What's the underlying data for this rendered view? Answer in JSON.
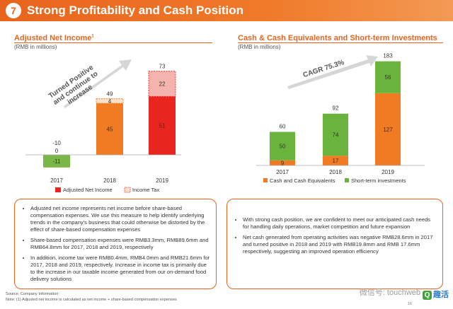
{
  "header": {
    "number": "7",
    "title": "Strong Profitability and Cash Position"
  },
  "left_chart": {
    "title": "Adjusted Net Income",
    "title_sup": "1",
    "subtitle": "(RMB in millions)",
    "arrow_text": [
      "Turned Positive",
      "and continue to",
      "increase"
    ],
    "legend": [
      "Adjusted Net Income",
      "Income Tax"
    ]
  },
  "right_chart": {
    "title": "Cash & Cash Equivalents and Short-term Investments",
    "subtitle": "(RMB in millions)",
    "arrow_text": "CAGR 75.3%",
    "legend": [
      "Cash and Cash Equivalents",
      "Short-term investments"
    ]
  },
  "chart_data": [
    {
      "type": "bar",
      "stacked": true,
      "title": "Adjusted Net Income",
      "categories": [
        "2017",
        "2018",
        "2019"
      ],
      "series": [
        {
          "name": "Adjusted Net Income",
          "values": [
            -11,
            45,
            51
          ],
          "labels": [
            "-11",
            "45",
            "51"
          ]
        },
        {
          "name": "Income Tax",
          "values": [
            0,
            4,
            22
          ],
          "labels": [
            "0",
            "4",
            "22"
          ]
        }
      ],
      "totals": [
        "-10",
        "49",
        "73"
      ],
      "colors": {
        "2017": "#7ab648",
        "2018": "#f07b22",
        "2019": "#e8261f",
        "tax_fill": "#fbe1cc",
        "tax_fill_2019": "#f5b3ad"
      },
      "ylim": [
        -11,
        73
      ]
    },
    {
      "type": "bar",
      "stacked": true,
      "title": "Cash & Cash Equivalents and Short-term Investments",
      "categories": [
        "2017",
        "2018",
        "2019"
      ],
      "series": [
        {
          "name": "Cash and Cash Equivalents",
          "values": [
            9,
            17,
            127
          ],
          "labels": [
            "9",
            "17",
            "127"
          ]
        },
        {
          "name": "Short-term investments",
          "values": [
            50,
            74,
            56
          ],
          "labels": [
            "50",
            "74",
            "56"
          ]
        }
      ],
      "totals": [
        "60",
        "92",
        "183"
      ],
      "colors": {
        "Cash and Cash Equivalents": "#f07b22",
        "Short-term investments": "#6ab43e"
      },
      "ylim": [
        0,
        183
      ]
    }
  ],
  "left_box": {
    "bullets": [
      "Adjusted net income represents net income before share-based compensation expenses. We use this measure to help identify underlying trends in the company's business that could otherwise be distorted by the effect of share-based compensation expenses",
      "Share-based compensation expenses were RMB3.3mm, RMB89.6mm and RMB64.8mm for 2017, 2018 and 2019, respectively",
      "In addition, income tax were RMB0.4mm, RMB4.0mm and RMB21.6mm for 2017, 2018 and 2019, respectively. Increase in income tax is primarily due to the increase in our taxable income generated from our on-demand food delivery solutions"
    ]
  },
  "right_box": {
    "bullets": [
      "With strong cash position, we are confident to meet our anticipated cash needs for handling daily operations, market competition and future expansion",
      "Net cash generated from operating activities was negative RMB28.6mm in 2017 and turned positive in 2018 and 2019 with RMB19.8mm and RMB 17.6mm respectively, suggesting an improved operation efficiency"
    ]
  },
  "footer": {
    "source": "Source: Company Information",
    "note": "Note: (1) Adjusted net income is calculated as net income + share-based compensation expenses",
    "page": "16"
  },
  "watermark": {
    "text": "微信号: touchweb",
    "brand": "趣活",
    "brand_icon": "Q"
  }
}
